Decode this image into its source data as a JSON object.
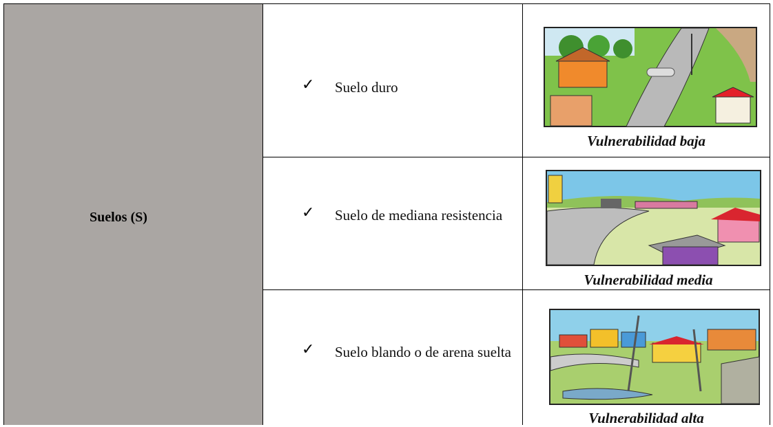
{
  "table": {
    "header": "Suelos (S)",
    "rows": [
      {
        "check": "✓",
        "text": "Suelo duro",
        "caption": "Vulnerabilidad baja"
      },
      {
        "check": "✓",
        "text": "Suelo de mediana resistencia",
        "caption": "Vulnerabilidad media"
      },
      {
        "check": "✓",
        "text": "Suelo blando o de arena suelta",
        "caption": "Vulnerabilidad alta"
      }
    ]
  }
}
